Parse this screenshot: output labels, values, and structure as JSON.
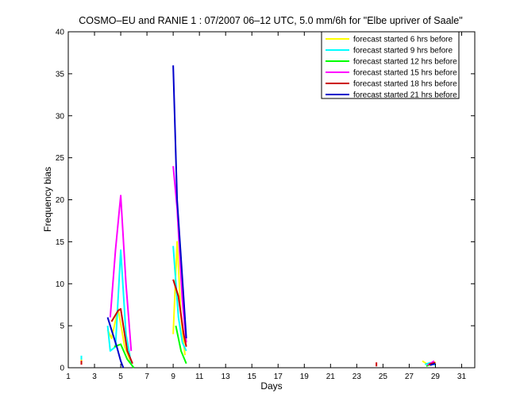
{
  "chart_data": {
    "type": "line",
    "title": "COSMO–EU and RANIE 1 : 07/2007 06–12 UTC, 5.0 mm/6h for \"Elbe upriver of Saale\"",
    "xlabel": "Days",
    "ylabel": "Frequency bias",
    "xlim": [
      1,
      32
    ],
    "ylim": [
      0,
      40
    ],
    "xticks": [
      1,
      3,
      5,
      7,
      9,
      11,
      13,
      15,
      17,
      19,
      21,
      23,
      25,
      27,
      29,
      31
    ],
    "xtick_labels": [
      "1",
      "3",
      "5",
      "7",
      "9",
      "11",
      "13",
      "15",
      "17",
      "19",
      "21",
      "23",
      "25",
      "27",
      "29",
      "31"
    ],
    "yticks": [
      0,
      5,
      10,
      15,
      20,
      25,
      30,
      35,
      40
    ],
    "ytick_labels": [
      "0",
      "5",
      "10",
      "15",
      "20",
      "25",
      "30",
      "35",
      "40"
    ],
    "grid": false,
    "legend_position": "top-right",
    "series": [
      {
        "name": "forecast started 6 hrs before",
        "color": "#ffff00",
        "segments": [
          [
            [
              2.0,
              0.8
            ]
          ],
          [
            [
              4.0,
              4.5
            ],
            [
              4.3,
              3.5
            ],
            [
              4.8,
              7.0
            ],
            [
              5.3,
              2.5
            ],
            [
              5.8,
              0.5
            ]
          ],
          [
            [
              9.0,
              4.0
            ],
            [
              9.3,
              15.0
            ],
            [
              9.6,
              6.0
            ],
            [
              9.9,
              1.5
            ]
          ],
          [
            [
              28.0,
              0.8
            ],
            [
              28.3,
              0.5
            ],
            [
              28.6,
              0.3
            ],
            [
              29.0,
              0.7
            ]
          ]
        ]
      },
      {
        "name": "forecast started 9 hrs before",
        "color": "#00ffff",
        "segments": [
          [
            [
              2.0,
              1.2
            ]
          ],
          [
            [
              4.0,
              5.0
            ],
            [
              4.2,
              2.0
            ],
            [
              4.6,
              2.5
            ],
            [
              5.0,
              14.0
            ],
            [
              5.4,
              4.0
            ],
            [
              5.8,
              0.5
            ]
          ],
          [
            [
              9.0,
              14.5
            ],
            [
              9.4,
              6.0
            ],
            [
              9.7,
              3.0
            ],
            [
              10.0,
              2.0
            ]
          ],
          [
            [
              28.2,
              0.4
            ],
            [
              28.6,
              0.6
            ],
            [
              29.0,
              0.3
            ]
          ]
        ]
      },
      {
        "name": "forecast started 12 hrs before",
        "color": "#00ff00",
        "segments": [
          [
            [
              4.5,
              2.5
            ],
            [
              5.0,
              2.8
            ],
            [
              5.5,
              1.0
            ],
            [
              6.0,
              0.0
            ]
          ],
          [
            [
              9.2,
              5.0
            ],
            [
              9.6,
              2.0
            ],
            [
              10.0,
              0.5
            ]
          ],
          [
            [
              28.3,
              0.2
            ],
            [
              28.8,
              0.5
            ]
          ]
        ]
      },
      {
        "name": "forecast started 15 hrs before",
        "color": "#ff00ff",
        "segments": [
          [
            [
              4.2,
              6.0
            ],
            [
              4.6,
              14.0
            ],
            [
              5.0,
              20.5
            ],
            [
              5.4,
              10.0
            ],
            [
              5.8,
              2.0
            ]
          ],
          [
            [
              9.0,
              24.0
            ],
            [
              9.3,
              19.0
            ],
            [
              9.7,
              8.0
            ],
            [
              10.0,
              3.0
            ]
          ],
          [
            [
              28.4,
              0.3
            ],
            [
              28.9,
              0.8
            ]
          ]
        ]
      },
      {
        "name": "forecast started 18 hrs before",
        "color": "#cc0000",
        "segments": [
          [
            [
              2.0,
              0.6
            ]
          ],
          [
            [
              4.3,
              5.5
            ],
            [
              4.8,
              6.8
            ],
            [
              5.0,
              7.0
            ],
            [
              5.5,
              2.0
            ],
            [
              5.9,
              0.5
            ]
          ],
          [
            [
              9.0,
              10.5
            ],
            [
              9.4,
              8.5
            ],
            [
              9.8,
              4.0
            ],
            [
              10.0,
              2.5
            ]
          ],
          [
            [
              24.5,
              0.4
            ]
          ],
          [
            [
              28.5,
              0.4
            ],
            [
              29.0,
              0.6
            ]
          ]
        ]
      },
      {
        "name": "forecast started 21 hrs before",
        "color": "#0000cc",
        "segments": [
          [
            [
              4.0,
              6.0
            ],
            [
              4.3,
              4.5
            ],
            [
              4.7,
              2.5
            ],
            [
              5.0,
              0.8
            ],
            [
              5.2,
              0.0
            ]
          ],
          [
            [
              9.0,
              36.0
            ],
            [
              9.3,
              20.0
            ],
            [
              9.6,
              13.0
            ],
            [
              10.0,
              3.5
            ]
          ],
          [
            [
              28.6,
              0.3
            ],
            [
              29.0,
              0.5
            ]
          ]
        ]
      }
    ]
  }
}
